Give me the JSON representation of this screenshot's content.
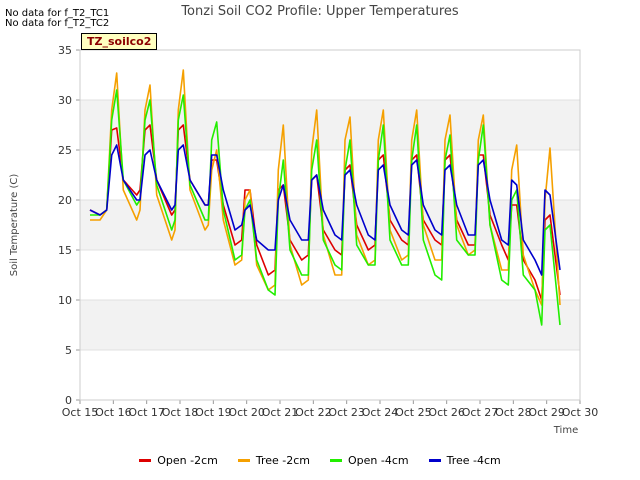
{
  "notes": [
    "No data for f_T2_TC1",
    "No data for f_T2_TC2"
  ],
  "badge": "TZ_soilco2",
  "chart_data": {
    "type": "line",
    "title": "Tonzi Soil CO2 Profile: Upper Temperatures",
    "xlabel": "Time",
    "ylabel": "Soil Temperature (C)",
    "xlim": [
      15,
      30
    ],
    "ylim": [
      0,
      35
    ],
    "x_ticks": [
      15,
      16,
      17,
      18,
      19,
      20,
      21,
      22,
      23,
      24,
      25,
      26,
      27,
      28,
      29,
      30
    ],
    "x_tick_labels": [
      "Oct 15",
      "Oct 16",
      "Oct 17",
      "Oct 18",
      "Oct 19",
      "Oct 20",
      "Oct 21",
      "Oct 22",
      "Oct 23",
      "Oct 24",
      "Oct 25",
      "Oct 26",
      "Oct 27",
      "Oct 28",
      "Oct 29",
      "Oct 30"
    ],
    "y_ticks": [
      0,
      5,
      10,
      15,
      20,
      25,
      30,
      35
    ],
    "y_tick_labels": [
      "0",
      "5",
      "10",
      "15",
      "20",
      "25",
      "30",
      "35"
    ],
    "grid_bands": true,
    "legend_position": "bottom",
    "series": [
      {
        "name": "Open -2cm",
        "color": "#dd0000",
        "x": [
          15.3,
          15.6,
          15.8,
          15.95,
          16.1,
          16.3,
          16.7,
          16.8,
          16.95,
          17.1,
          17.3,
          17.75,
          17.85,
          17.95,
          18.1,
          18.3,
          18.75,
          18.85,
          18.95,
          19.1,
          19.3,
          19.65,
          19.85,
          19.95,
          20.1,
          20.3,
          20.65,
          20.85,
          20.95,
          21.1,
          21.3,
          21.65,
          21.85,
          21.95,
          22.1,
          22.3,
          22.65,
          22.85,
          22.95,
          23.1,
          23.3,
          23.65,
          23.85,
          23.95,
          24.1,
          24.3,
          24.65,
          24.85,
          24.95,
          25.1,
          25.3,
          25.65,
          25.85,
          25.95,
          26.1,
          26.3,
          26.65,
          26.85,
          26.95,
          27.1,
          27.3,
          27.65,
          27.85,
          27.95,
          28.1,
          28.3,
          28.65,
          28.85,
          28.95,
          29.1,
          29.4
        ],
        "y": [
          19,
          18.5,
          19,
          27,
          27.2,
          22,
          20.5,
          21,
          27,
          27.5,
          22,
          18.5,
          19,
          27,
          27.5,
          22,
          19.5,
          19.5,
          24,
          24,
          19.5,
          15.5,
          16,
          21,
          21,
          15.5,
          12.5,
          13,
          21,
          21.5,
          16,
          14,
          14.5,
          22,
          22.5,
          17,
          15,
          14.5,
          23,
          23.5,
          17.5,
          15,
          15.5,
          24,
          24.5,
          18,
          16,
          15.5,
          24,
          24.5,
          18,
          16,
          15.5,
          24,
          24.5,
          18,
          15.5,
          15.5,
          24.5,
          24.5,
          18.5,
          15.5,
          14,
          19.5,
          19.5,
          14,
          12,
          10,
          18,
          18.5,
          10.5
        ]
      },
      {
        "name": "Tree -2cm",
        "color": "#f5a000",
        "x": [
          15.3,
          15.6,
          15.8,
          15.95,
          16.1,
          16.3,
          16.7,
          16.8,
          16.95,
          17.1,
          17.3,
          17.75,
          17.85,
          17.95,
          18.1,
          18.3,
          18.75,
          18.85,
          18.95,
          19.1,
          19.3,
          19.65,
          19.85,
          19.95,
          20.1,
          20.3,
          20.65,
          20.85,
          20.95,
          21.1,
          21.3,
          21.65,
          21.85,
          21.95,
          22.1,
          22.3,
          22.65,
          22.85,
          22.95,
          23.1,
          23.3,
          23.65,
          23.85,
          23.95,
          24.1,
          24.3,
          24.65,
          24.85,
          24.95,
          25.1,
          25.3,
          25.65,
          25.85,
          25.95,
          26.1,
          26.3,
          26.65,
          26.85,
          26.95,
          27.1,
          27.3,
          27.65,
          27.85,
          27.95,
          28.1,
          28.3,
          28.65,
          28.85,
          28.95,
          29.1,
          29.4
        ],
        "y": [
          18,
          18,
          19,
          29,
          32.7,
          21,
          18,
          19,
          29,
          31.5,
          20.5,
          16,
          17,
          29,
          33,
          21,
          17,
          17.5,
          23,
          25,
          18,
          13.5,
          14,
          20,
          21,
          13.5,
          11,
          11.5,
          23,
          27.5,
          15.5,
          11.5,
          12,
          25,
          29,
          16.5,
          12.5,
          12.5,
          26,
          28.3,
          16.5,
          13.5,
          14,
          26,
          29,
          17,
          14,
          14.5,
          26,
          29,
          17.5,
          14,
          14,
          26,
          28.5,
          17.5,
          14.5,
          15,
          26,
          28.5,
          17.5,
          13,
          13,
          23,
          25.5,
          14.5,
          11,
          9.5,
          20,
          25.2,
          9.5
        ]
      },
      {
        "name": "Open -4cm",
        "color": "#22ee00",
        "x": [
          15.3,
          15.6,
          15.8,
          15.95,
          16.1,
          16.3,
          16.7,
          16.8,
          16.95,
          17.1,
          17.3,
          17.75,
          17.85,
          17.95,
          18.1,
          18.3,
          18.75,
          18.85,
          18.95,
          19.1,
          19.3,
          19.65,
          19.85,
          19.95,
          20.1,
          20.3,
          20.65,
          20.85,
          20.95,
          21.1,
          21.3,
          21.65,
          21.85,
          21.95,
          22.1,
          22.3,
          22.65,
          22.85,
          22.95,
          23.1,
          23.3,
          23.65,
          23.85,
          23.95,
          24.1,
          24.3,
          24.65,
          24.85,
          24.95,
          25.1,
          25.3,
          25.65,
          25.85,
          25.95,
          26.1,
          26.3,
          26.65,
          26.85,
          26.95,
          27.1,
          27.3,
          27.65,
          27.85,
          27.95,
          28.1,
          28.3,
          28.65,
          28.85,
          28.95,
          29.1,
          29.4
        ],
        "y": [
          18.5,
          18.5,
          19,
          28,
          31,
          22,
          19.5,
          20,
          28,
          30,
          21.5,
          17,
          18,
          28,
          30.5,
          21.5,
          18,
          18,
          26,
          27.8,
          19,
          14,
          14.5,
          19,
          20,
          14,
          11,
          10.5,
          20,
          24,
          15,
          12.5,
          12.5,
          23,
          26,
          16,
          13.5,
          13,
          23,
          26,
          15.5,
          13.5,
          13.5,
          24,
          27.5,
          16,
          13.5,
          13.5,
          24,
          27.5,
          16,
          12.5,
          12,
          24,
          26.5,
          16,
          14.5,
          14.5,
          24,
          27.5,
          17.5,
          12,
          11.5,
          20,
          21,
          12.5,
          11,
          7.5,
          17,
          17.5,
          7.5
        ]
      },
      {
        "name": "Tree -4cm",
        "color": "#0000cc",
        "x": [
          15.3,
          15.6,
          15.8,
          15.95,
          16.1,
          16.3,
          16.7,
          16.8,
          16.95,
          17.1,
          17.3,
          17.75,
          17.85,
          17.95,
          18.1,
          18.3,
          18.75,
          18.85,
          18.95,
          19.1,
          19.3,
          19.65,
          19.85,
          19.95,
          20.1,
          20.3,
          20.65,
          20.85,
          20.95,
          21.1,
          21.3,
          21.65,
          21.85,
          21.95,
          22.1,
          22.3,
          22.65,
          22.85,
          22.95,
          23.1,
          23.3,
          23.65,
          23.85,
          23.95,
          24.1,
          24.3,
          24.65,
          24.85,
          24.95,
          25.1,
          25.3,
          25.65,
          25.85,
          25.95,
          26.1,
          26.3,
          26.65,
          26.85,
          26.95,
          27.1,
          27.3,
          27.65,
          27.85,
          27.95,
          28.1,
          28.3,
          28.65,
          28.85,
          28.95,
          29.1,
          29.4
        ],
        "y": [
          19,
          18.5,
          19,
          24.5,
          25.5,
          22,
          20,
          20,
          24.5,
          25,
          22,
          19,
          19.5,
          25,
          25.5,
          22,
          19.5,
          19.5,
          24.5,
          24.5,
          21,
          17,
          17.5,
          19,
          19.5,
          16,
          15,
          15,
          20,
          21.5,
          18,
          16,
          16,
          22,
          22.5,
          19,
          16.5,
          16,
          22.5,
          23,
          19.5,
          16.5,
          16,
          23,
          23.5,
          19.5,
          17,
          16.5,
          23.5,
          24,
          19.5,
          17,
          16.5,
          23,
          23.5,
          19.5,
          16.5,
          16.5,
          23.5,
          24,
          20,
          16,
          15.5,
          22,
          21.5,
          16,
          14,
          12.5,
          21,
          20.5,
          13
        ]
      }
    ]
  }
}
